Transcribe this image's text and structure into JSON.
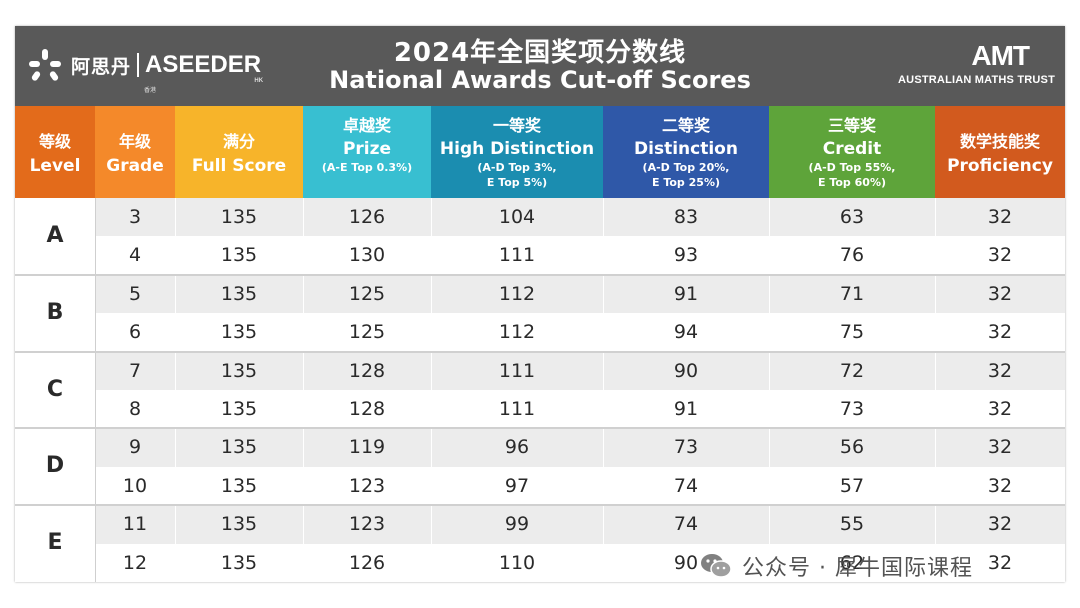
{
  "brand_left": {
    "cn": "阿思丹",
    "en": "ASEEDER",
    "small": "香港",
    "sub": "HK"
  },
  "title": {
    "cn": "2024年全国奖项分数线",
    "en": "National Awards Cut-off Scores"
  },
  "brand_right": {
    "name": "AMT",
    "sub": "AUSTRALIAN MATHS TRUST"
  },
  "colors": {
    "level": "#e36b1b",
    "grade": "#f4892a",
    "full": "#f7b42a",
    "prize": "#38bfd1",
    "high": "#1b8db0",
    "dist": "#2f58a8",
    "credit": "#5ea43a",
    "prof": "#d25a1e"
  },
  "headers": {
    "level": {
      "cn": "等级",
      "en": "Level"
    },
    "grade": {
      "cn": "年级",
      "en": "Grade"
    },
    "full": {
      "cn": "满分",
      "en": "Full Score"
    },
    "prize": {
      "cn": "卓越奖",
      "en": "Prize",
      "note": "(A-E Top 0.3%)"
    },
    "high": {
      "cn": "一等奖",
      "en": "High Distinction",
      "note1": "(A-D Top 3%,",
      "note2": "E Top 5%)"
    },
    "dist": {
      "cn": "二等奖",
      "en": "Distinction",
      "note1": "(A-D Top 20%,",
      "note2": "E Top 25%)"
    },
    "credit": {
      "cn": "三等奖",
      "en": "Credit",
      "note1": "(A-D Top 55%,",
      "note2": "E Top 60%)"
    },
    "prof": {
      "cn": "数学技能奖",
      "en": "Proficiency"
    }
  },
  "levels": [
    "A",
    "B",
    "C",
    "D",
    "E"
  ],
  "rows": [
    {
      "grade": "3",
      "full": "135",
      "prize": "126",
      "high": "104",
      "dist": "83",
      "credit": "63",
      "prof": "32"
    },
    {
      "grade": "4",
      "full": "135",
      "prize": "130",
      "high": "111",
      "dist": "93",
      "credit": "76",
      "prof": "32"
    },
    {
      "grade": "5",
      "full": "135",
      "prize": "125",
      "high": "112",
      "dist": "91",
      "credit": "71",
      "prof": "32"
    },
    {
      "grade": "6",
      "full": "135",
      "prize": "125",
      "high": "112",
      "dist": "94",
      "credit": "75",
      "prof": "32"
    },
    {
      "grade": "7",
      "full": "135",
      "prize": "128",
      "high": "111",
      "dist": "90",
      "credit": "72",
      "prof": "32"
    },
    {
      "grade": "8",
      "full": "135",
      "prize": "128",
      "high": "111",
      "dist": "91",
      "credit": "73",
      "prof": "32"
    },
    {
      "grade": "9",
      "full": "135",
      "prize": "119",
      "high": "96",
      "dist": "73",
      "credit": "56",
      "prof": "32"
    },
    {
      "grade": "10",
      "full": "135",
      "prize": "123",
      "high": "97",
      "dist": "74",
      "credit": "57",
      "prof": "32"
    },
    {
      "grade": "11",
      "full": "135",
      "prize": "123",
      "high": "99",
      "dist": "74",
      "credit": "55",
      "prof": "32"
    },
    {
      "grade": "12",
      "full": "135",
      "prize": "126",
      "high": "110",
      "dist": "90",
      "credit": "62",
      "prof": "32"
    }
  ],
  "watermark": {
    "text": "公众号 · 犀牛国际课程",
    "icon": "wechat-icon"
  }
}
